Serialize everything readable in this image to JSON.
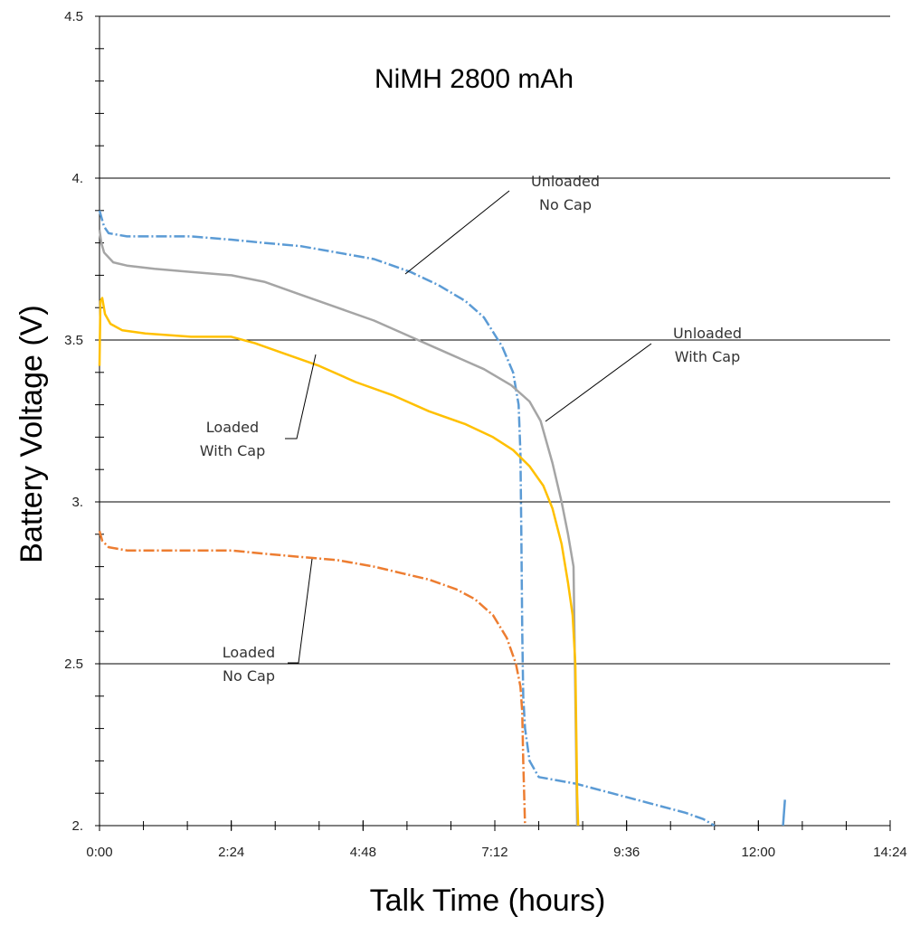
{
  "chart_data": {
    "type": "line",
    "title": "NiMH 2800 mAh",
    "xlabel": "Talk Time (hours)",
    "ylabel": "Battery Voltage (V)",
    "xlim": [
      0,
      864
    ],
    "ylim": [
      2.0,
      4.5
    ],
    "x_unit": "minutes",
    "x_ticks": [
      0,
      144,
      288,
      432,
      576,
      720,
      864
    ],
    "x_tick_labels": [
      "0:00",
      "2:24",
      "4:48",
      "7:12",
      "9:36",
      "12:00",
      "14:24"
    ],
    "y_ticks": [
      2.0,
      2.5,
      3.0,
      3.5,
      4.0,
      4.5
    ],
    "y_tick_labels": [
      "2.",
      "2.5",
      "3.",
      "3.5",
      "4.",
      "4.5"
    ],
    "grid": "horizontal major",
    "series": [
      {
        "name": "Unloaded No Cap",
        "color": "#5b9bd5",
        "style": "dash-dot",
        "points": [
          [
            0,
            3.9
          ],
          [
            2,
            3.88
          ],
          [
            5,
            3.85
          ],
          [
            10,
            3.83
          ],
          [
            30,
            3.82
          ],
          [
            60,
            3.82
          ],
          [
            100,
            3.82
          ],
          [
            144,
            3.81
          ],
          [
            180,
            3.8
          ],
          [
            220,
            3.79
          ],
          [
            260,
            3.77
          ],
          [
            300,
            3.75
          ],
          [
            340,
            3.71
          ],
          [
            370,
            3.67
          ],
          [
            400,
            3.62
          ],
          [
            420,
            3.57
          ],
          [
            440,
            3.48
          ],
          [
            452,
            3.4
          ],
          [
            458,
            3.3
          ],
          [
            460,
            3.15
          ],
          [
            461,
            2.9
          ],
          [
            462,
            2.6
          ],
          [
            463,
            2.4
          ],
          [
            465,
            2.3
          ],
          [
            470,
            2.2
          ],
          [
            480,
            2.15
          ],
          [
            520,
            2.13
          ],
          [
            560,
            2.1
          ],
          [
            600,
            2.07
          ],
          [
            640,
            2.04
          ],
          [
            660,
            2.02
          ],
          [
            672,
            2.0
          ]
        ]
      },
      {
        "name": "Unloaded No Cap (tail)",
        "color": "#5b9bd5",
        "style": "solid",
        "points": [
          [
            747,
            2.0
          ],
          [
            749,
            2.08
          ]
        ]
      },
      {
        "name": "Unloaded With Cap",
        "color": "#a5a5a5",
        "style": "solid",
        "points": [
          [
            0,
            3.84
          ],
          [
            2,
            3.8
          ],
          [
            5,
            3.77
          ],
          [
            15,
            3.74
          ],
          [
            30,
            3.73
          ],
          [
            60,
            3.72
          ],
          [
            100,
            3.71
          ],
          [
            144,
            3.7
          ],
          [
            180,
            3.68
          ],
          [
            220,
            3.64
          ],
          [
            260,
            3.6
          ],
          [
            300,
            3.56
          ],
          [
            340,
            3.51
          ],
          [
            380,
            3.46
          ],
          [
            420,
            3.41
          ],
          [
            450,
            3.36
          ],
          [
            470,
            3.31
          ],
          [
            482,
            3.25
          ],
          [
            495,
            3.12
          ],
          [
            505,
            3.0
          ],
          [
            512,
            2.9
          ],
          [
            518,
            2.8
          ],
          [
            519,
            2.6
          ],
          [
            520,
            2.4
          ],
          [
            521,
            2.2
          ],
          [
            522,
            2.0
          ]
        ]
      },
      {
        "name": "Loaded With Cap",
        "color": "#ffc000",
        "style": "solid",
        "points": [
          [
            0,
            3.42
          ],
          [
            1,
            3.62
          ],
          [
            3,
            3.63
          ],
          [
            6,
            3.58
          ],
          [
            12,
            3.55
          ],
          [
            25,
            3.53
          ],
          [
            50,
            3.52
          ],
          [
            100,
            3.51
          ],
          [
            144,
            3.51
          ],
          [
            170,
            3.49
          ],
          [
            200,
            3.46
          ],
          [
            240,
            3.42
          ],
          [
            280,
            3.37
          ],
          [
            320,
            3.33
          ],
          [
            360,
            3.28
          ],
          [
            400,
            3.24
          ],
          [
            430,
            3.2
          ],
          [
            452,
            3.16
          ],
          [
            470,
            3.11
          ],
          [
            485,
            3.05
          ],
          [
            495,
            2.98
          ],
          [
            505,
            2.87
          ],
          [
            512,
            2.75
          ],
          [
            517,
            2.65
          ],
          [
            520,
            2.5
          ],
          [
            521,
            2.3
          ],
          [
            522,
            2.1
          ],
          [
            523,
            2.0
          ]
        ]
      },
      {
        "name": "Loaded No Cap",
        "color": "#ed7d31",
        "style": "dash-dot",
        "points": [
          [
            0,
            2.91
          ],
          [
            3,
            2.88
          ],
          [
            10,
            2.86
          ],
          [
            30,
            2.85
          ],
          [
            60,
            2.85
          ],
          [
            100,
            2.85
          ],
          [
            144,
            2.85
          ],
          [
            180,
            2.84
          ],
          [
            220,
            2.83
          ],
          [
            260,
            2.82
          ],
          [
            300,
            2.8
          ],
          [
            330,
            2.78
          ],
          [
            360,
            2.76
          ],
          [
            390,
            2.73
          ],
          [
            410,
            2.7
          ],
          [
            430,
            2.65
          ],
          [
            445,
            2.58
          ],
          [
            455,
            2.5
          ],
          [
            460,
            2.43
          ],
          [
            462,
            2.35
          ],
          [
            463,
            2.2
          ],
          [
            464,
            2.1
          ],
          [
            465,
            2.0
          ]
        ]
      }
    ],
    "annotations": [
      {
        "text": [
          "Unloaded",
          "No Cap"
        ],
        "series": "Unloaded No Cap",
        "anchor": [
          336,
          3.71
        ]
      },
      {
        "text": [
          "Unloaded",
          "With Cap"
        ],
        "series": "Unloaded With Cap",
        "anchor": [
          487,
          3.24
        ]
      },
      {
        "text": [
          "Loaded",
          "With Cap"
        ],
        "series": "Loaded With Cap",
        "anchor": [
          232,
          3.45
        ]
      },
      {
        "text": [
          "Loaded",
          "No Cap"
        ],
        "series": "Loaded No Cap",
        "anchor": [
          234,
          2.83
        ]
      }
    ]
  }
}
